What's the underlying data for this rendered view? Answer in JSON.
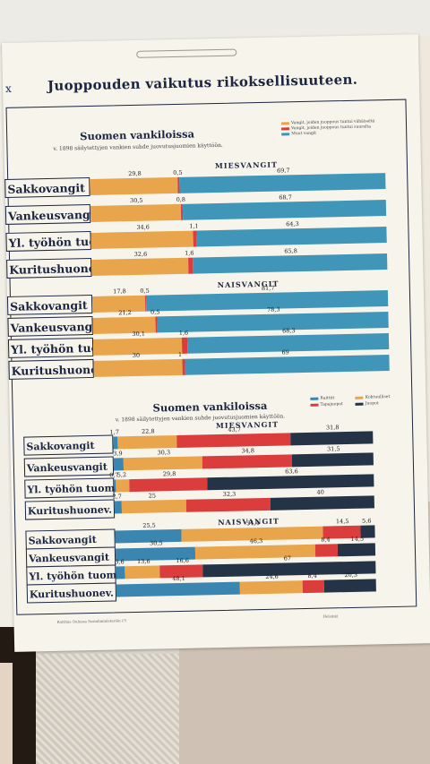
{
  "poster": {
    "roman_numeral": "x",
    "title": "Juoppouden vaikutus rikoksellisuuteen."
  },
  "colors": {
    "orange": "#e9a54c",
    "red": "#db3d3d",
    "teal": "#3f96b8",
    "navy": "#243345",
    "blue": "#3b86b0",
    "paper": "#f7f4ec"
  },
  "section1": {
    "title": "Suomen vankiloissa",
    "subtitle": "v. 1898 säilytettyjen vankien suhde juovutusjuomien käyttöön.",
    "legend": [
      {
        "label": "Vangit, joiden juoppous tuntui vähäiseltä",
        "color": "orange"
      },
      {
        "label": "Vangit, joiden juoppous tuntui suurelta",
        "color": "red"
      },
      {
        "label": "Muut vangit",
        "color": "teal"
      }
    ],
    "groups": [
      {
        "label": "MIESVANGIT",
        "rows": [
          {
            "name": "Sakkovangit",
            "values": [
              29.8,
              0.5,
              69.7
            ]
          },
          {
            "name": "Vankeusvangit",
            "values": [
              30.5,
              0.8,
              68.7
            ]
          },
          {
            "name": "Yl. työhön tuom.",
            "values": [
              34.6,
              1.1,
              64.3
            ]
          },
          {
            "name": "Kuritushuonev.",
            "values": [
              32.6,
              1.6,
              65.8
            ]
          }
        ]
      },
      {
        "label": "NAISVANGIT",
        "rows": [
          {
            "name": "Sakkovangit",
            "values": [
              17.8,
              0.5,
              81.7
            ]
          },
          {
            "name": "Vankeusvangit",
            "values": [
              21.2,
              0.5,
              78.3
            ]
          },
          {
            "name": "Yl. työhön tuom.",
            "values": [
              30.1,
              1.6,
              68.3
            ]
          },
          {
            "name": "Kuritushuonev.",
            "values": [
              30.0,
              1.0,
              69.0
            ]
          }
        ]
      }
    ]
  },
  "section2": {
    "title": "Suomen vankiloissa",
    "subtitle": "v. 1898 säilytettyjen vankien suhde juovutusjuomien käyttöön.",
    "legend": [
      {
        "label": "Raittiit",
        "color": "blue"
      },
      {
        "label": "Kohtuulliset",
        "color": "orange"
      },
      {
        "label": "Tapajuopot",
        "color": "red"
      },
      {
        "label": "Juopot",
        "color": "navy"
      }
    ],
    "groups": [
      {
        "label": "MIESVANGIT",
        "rows": [
          {
            "name": "Sakkovangit",
            "values": [
              1.7,
              22.8,
              43.7,
              31.8
            ]
          },
          {
            "name": "Vankeusvangit",
            "values": [
              3.9,
              30.3,
              34.8,
              31.5
            ]
          },
          {
            "name": "Yl. työhön tuom.",
            "values": [
              0.7,
              5.2,
              29.8,
              63.6
            ]
          },
          {
            "name": "Kuritushuonev.",
            "values": [
              2.7,
              25.0,
              32.3,
              40.0
            ]
          }
        ]
      },
      {
        "label": "NAISVANGIT",
        "rows": [
          {
            "name": "Sakkovangit",
            "values": [
              25.5,
              54.4,
              14.5,
              5.6
            ]
          },
          {
            "name": "Vankeusvangit",
            "values": [
              30.5,
              46.3,
              8.4,
              14.5
            ]
          },
          {
            "name": "Yl. työhön tuom.",
            "values": [
              3.6,
              13.6,
              16.6,
              67.0
            ]
          },
          {
            "name": "Kuritushuonev.",
            "values": [
              48.1,
              24.6,
              8.4,
              20.3
            ]
          }
        ]
      }
    ]
  },
  "footer": {
    "left": "Raittius Oulussa Sosialiministeriön (?)",
    "right": "Helsinki"
  }
}
